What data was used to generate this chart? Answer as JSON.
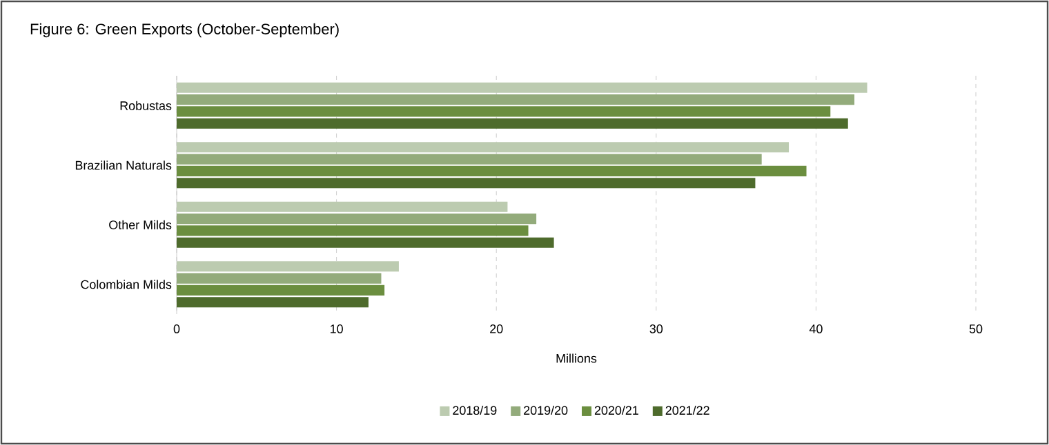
{
  "chart_data": {
    "type": "bar",
    "orientation": "horizontal",
    "title": "Figure 6: Green Exports (October-September)",
    "xlabel": "Millions",
    "categories": [
      "Robustas",
      "Brazilian Naturals",
      "Other Milds",
      "Colombian Milds"
    ],
    "series": [
      {
        "name": "2018/19",
        "color": "#bccbb0",
        "values": [
          43.2,
          38.3,
          20.7,
          13.9
        ]
      },
      {
        "name": "2019/20",
        "color": "#93ab7b",
        "values": [
          42.4,
          36.6,
          22.5,
          12.8
        ]
      },
      {
        "name": "2020/21",
        "color": "#6b8e3f",
        "values": [
          40.9,
          39.4,
          22.0,
          13.0
        ]
      },
      {
        "name": "2021/22",
        "color": "#4e6b2c",
        "values": [
          42.0,
          36.2,
          23.6,
          12.0
        ]
      }
    ],
    "xlim": [
      0,
      50
    ],
    "xticks": [
      0,
      10,
      20,
      30,
      40,
      50
    ],
    "grid": "x",
    "legend": "bottom"
  }
}
